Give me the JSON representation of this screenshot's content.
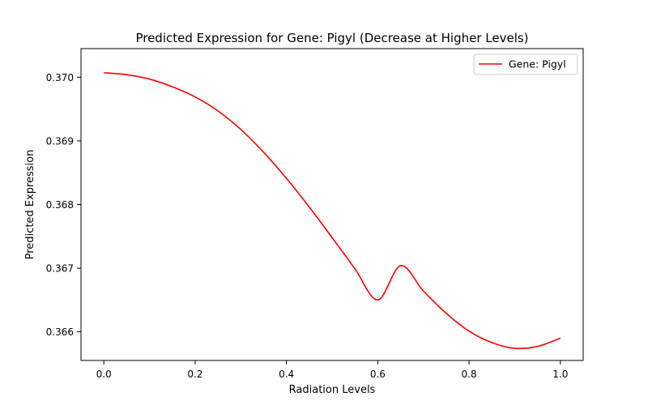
{
  "chart_data": {
    "type": "line",
    "title": "Predicted Expression for Gene: Pigyl (Decrease at Higher Levels)",
    "xlabel": "Radiation Levels",
    "ylabel": "Predicted Expression",
    "xlim": [
      -0.05,
      1.05
    ],
    "ylim": [
      0.36555,
      0.37045
    ],
    "xticks": [
      0.0,
      0.2,
      0.4,
      0.6,
      0.8,
      1.0
    ],
    "xtick_labels": [
      "0.0",
      "0.2",
      "0.4",
      "0.6",
      "0.8",
      "1.0"
    ],
    "yticks": [
      0.366,
      0.367,
      0.368,
      0.369,
      0.37
    ],
    "ytick_labels": [
      "0.366",
      "0.367",
      "0.368",
      "0.369",
      "0.370"
    ],
    "grid": false,
    "legend": {
      "placement": "top-right",
      "entries": [
        "Gene: Pigyl"
      ]
    },
    "series": [
      {
        "name": "Gene: Pigyl",
        "color": "#ff0000",
        "x": [
          0.0,
          0.05,
          0.1,
          0.15,
          0.2,
          0.25,
          0.3,
          0.35,
          0.4,
          0.45,
          0.5,
          0.55,
          0.6,
          0.65,
          0.7,
          0.75,
          0.8,
          0.85,
          0.9,
          0.95,
          1.0
        ],
        "y": [
          0.37007,
          0.37004,
          0.36997,
          0.36985,
          0.36969,
          0.36947,
          0.36918,
          0.36882,
          0.36841,
          0.36796,
          0.36748,
          0.36699,
          0.3665,
          0.36704,
          0.36664,
          0.36629,
          0.36601,
          0.36583,
          0.36574,
          0.36577,
          0.3659
        ]
      }
    ]
  }
}
